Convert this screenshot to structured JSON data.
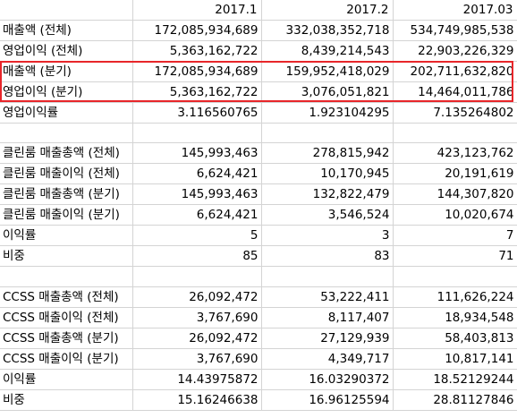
{
  "sheet": {
    "header": [
      "",
      "2017.1",
      "2017.2",
      "2017.03"
    ],
    "rows": [
      [
        "매출액 (전체)",
        "172,085,934,689",
        "332,038,352,718",
        "534,749,985,538"
      ],
      [
        "영업이익 (전체)",
        "5,363,162,722",
        "8,439,214,543",
        "22,903,226,329"
      ],
      [
        "매출액 (분기)",
        "172,085,934,689",
        "159,952,418,029",
        "202,711,632,820"
      ],
      [
        "영업이익 (분기)",
        "5,363,162,722",
        "3,076,051,821",
        "14,464,011,786"
      ],
      [
        "영업이익률",
        "3.116560765",
        "1.923104295",
        "7.135264802"
      ],
      [
        "",
        "",
        "",
        ""
      ],
      [
        "클린룸 매출총액 (전체)",
        "145,993,463",
        "278,815,942",
        "423,123,762"
      ],
      [
        "클린룸 매출이익 (전체)",
        "6,624,421",
        "10,170,945",
        "20,191,619"
      ],
      [
        "클린룸 매출총액 (분기)",
        "145,993,463",
        "132,822,479",
        "144,307,820"
      ],
      [
        "클린룸 매출이익 (분기)",
        "6,624,421",
        "3,546,524",
        "10,020,674"
      ],
      [
        "이익률",
        "5",
        "3",
        "7"
      ],
      [
        "비중",
        "85",
        "83",
        "71"
      ],
      [
        "",
        "",
        "",
        ""
      ],
      [
        "CCSS 매출총액 (전체)",
        "26,092,472",
        "53,222,411",
        "111,626,224"
      ],
      [
        "CCSS 매출이익 (전체)",
        "3,767,690",
        "8,117,407",
        "18,934,548"
      ],
      [
        "CCSS 매출총액 (분기)",
        "26,092,472",
        "27,129,939",
        "58,403,813"
      ],
      [
        "CCSS 매출이익 (분기)",
        "3,767,690",
        "4,349,717",
        "10,817,141"
      ],
      [
        "이익률",
        "14.43975872",
        "16.03290372",
        "18.52129244"
      ],
      [
        "비중",
        "15.16246638",
        "16.96125594",
        "28.81127846"
      ]
    ],
    "highlight_color": "#e8262a"
  }
}
